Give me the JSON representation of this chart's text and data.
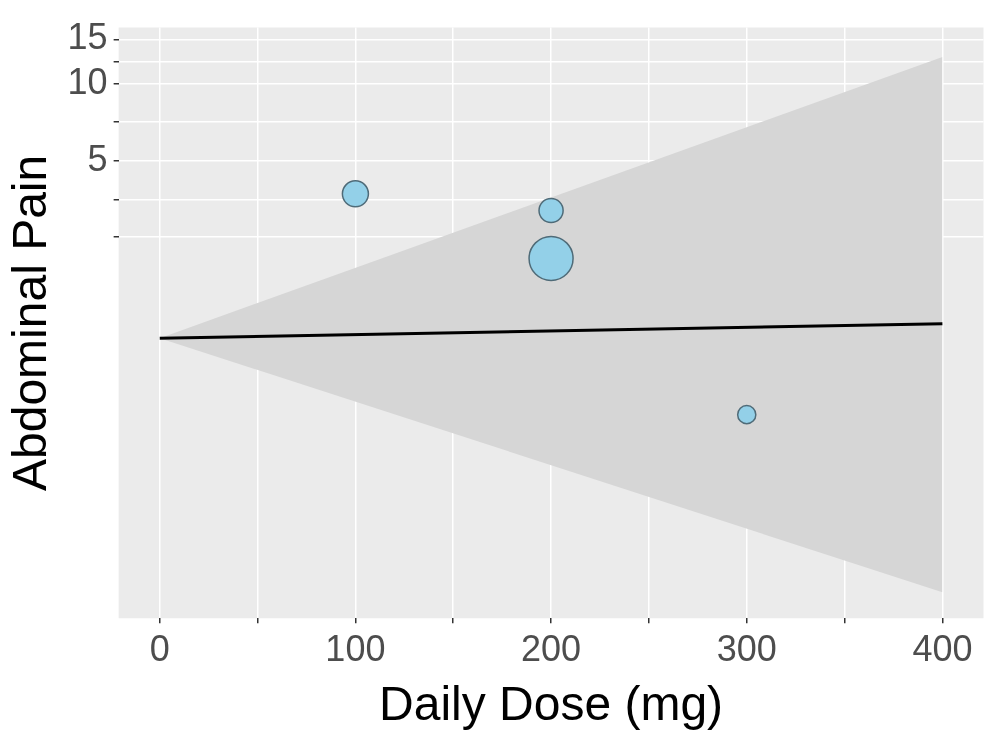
{
  "chart_data": {
    "type": "bubble",
    "xlabel": "Daily Dose (mg)",
    "ylabel": "Abdominal Pain",
    "xlim": [
      -21,
      421
    ],
    "ylim": [
      0.079,
      16.7
    ],
    "log": "y",
    "xticks": [
      0,
      {
        "value": 50,
        "label": null
      },
      100,
      {
        "value": 150,
        "label": null
      },
      200,
      {
        "value": 250,
        "label": null
      },
      300,
      {
        "value": 350,
        "label": null
      },
      400
    ],
    "yticks": [
      {
        "value": 2.5,
        "label": null
      },
      {
        "value": 3.5,
        "label": null
      },
      5,
      {
        "value": 7.1,
        "label": null
      },
      10,
      {
        "value": 12.2,
        "label": null
      },
      15
    ],
    "grid": true,
    "series": [
      {
        "type": "line",
        "color": "#000000",
        "x": [
          0,
          400
        ],
        "values": [
          1.0,
          1.14
        ],
        "lower": [
          1.0,
          0.1
        ],
        "upper": [
          1.0,
          12.8
        ],
        "marker": "none"
      },
      {
        "marker": "circle",
        "color": "#93d0e8",
        "x": [
          100,
          200,
          200,
          300
        ],
        "values": [
          3.7,
          3.18,
          2.06,
          0.5
        ],
        "sizes": [
          0.35,
          0.3,
          1,
          0.17
        ]
      }
    ]
  }
}
